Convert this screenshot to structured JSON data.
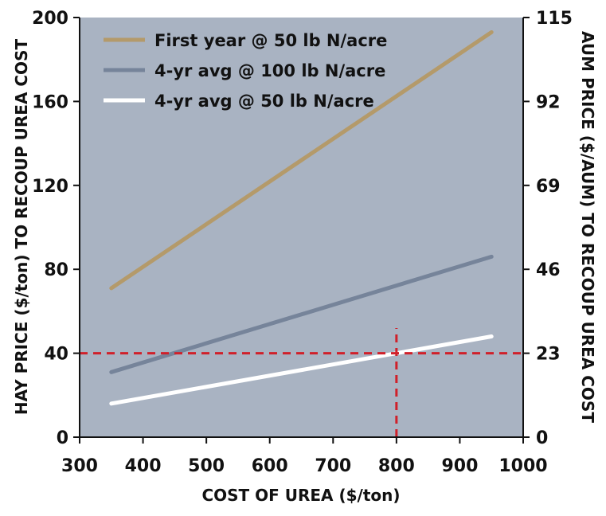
{
  "chart_data": {
    "type": "line",
    "xlabel": "COST OF UREA ($/ton)",
    "ylabel": "HAY PRICE ($/ton) TO RECOUP UREA COST",
    "y2label": "AUM PRICE ($/AUM) TO RECOUP UREA COST",
    "xlim": [
      300,
      1000
    ],
    "ylim": [
      0,
      200
    ],
    "y2lim": [
      0,
      115
    ],
    "xticks": [
      "300",
      "400",
      "500",
      "600",
      "700",
      "800",
      "900",
      "1000"
    ],
    "yticks": [
      "0",
      "40",
      "80",
      "120",
      "160",
      "200"
    ],
    "y2ticks": [
      "0",
      "23",
      "46",
      "69",
      "92",
      "115"
    ],
    "legend_position": "top-left",
    "plot_background": "#a9b3c2",
    "series": [
      {
        "name": "First year @ 50 lb N/acre",
        "color": "#b49a6a",
        "x": [
          350,
          950
        ],
        "y": [
          71,
          193
        ]
      },
      {
        "name": "4-yr avg @ 100 lb N/acre",
        "color": "#76849a",
        "x": [
          350,
          950
        ],
        "y": [
          31,
          86
        ]
      },
      {
        "name": "4-yr avg @ 50 lb N/acre",
        "color": "#ffffff",
        "x": [
          350,
          950
        ],
        "y": [
          16,
          48
        ]
      }
    ],
    "reference_lines": [
      {
        "orientation": "horizontal",
        "value": 40,
        "color": "#d0202a",
        "style": "dashed"
      },
      {
        "orientation": "vertical",
        "value": 800,
        "color": "#d0202a",
        "style": "dashed",
        "ymax": 52
      }
    ]
  }
}
